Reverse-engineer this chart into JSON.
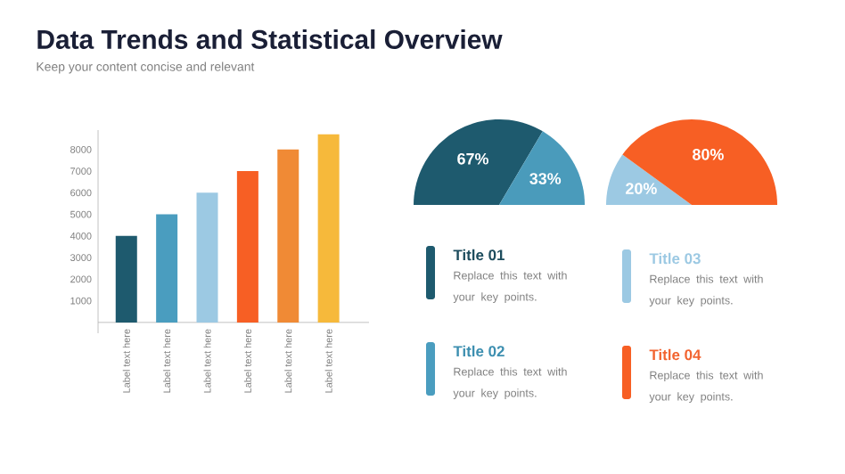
{
  "chart_data": [
    {
      "type": "bar",
      "title": "Data Trends and Statistical Overview",
      "subtitle": "Keep your content concise and relevant",
      "categories": [
        "Label text here",
        "Label text here",
        "Label text here",
        "Label text here",
        "Label text here",
        "Label text here"
      ],
      "values": [
        4000,
        5000,
        6000,
        7000,
        8000,
        8700
      ],
      "colors": [
        "#1e5a6e",
        "#4a9dbf",
        "#9cc9e3",
        "#f75f24",
        "#f08a35",
        "#f6b93b"
      ],
      "ylim": [
        -500,
        8900
      ],
      "yticks": [
        1000,
        2000,
        3000,
        4000,
        5000,
        6000,
        7000,
        8000
      ],
      "grid": false
    },
    {
      "type": "pie",
      "categories": [
        null,
        null
      ],
      "values": [
        67,
        33
      ],
      "colors": [
        "#1e5a6e",
        "#4a9bbb"
      ],
      "value_labels": [
        "67%",
        "33%"
      ]
    },
    {
      "type": "pie",
      "categories": [
        null,
        null
      ],
      "values": [
        20,
        80
      ],
      "colors": [
        "#9cc9e3",
        "#f75f24"
      ],
      "value_labels": [
        "20%",
        "80%"
      ]
    },
    {
      "type": "other",
      "annotations": [
        "Title 01",
        "Replace this text with your key points.",
        "Title 02",
        "Replace this text with your key points.",
        "Title 03",
        "Replace this text with your key points.",
        "Title 04",
        "Replace this text with your key points."
      ]
    }
  ]
}
